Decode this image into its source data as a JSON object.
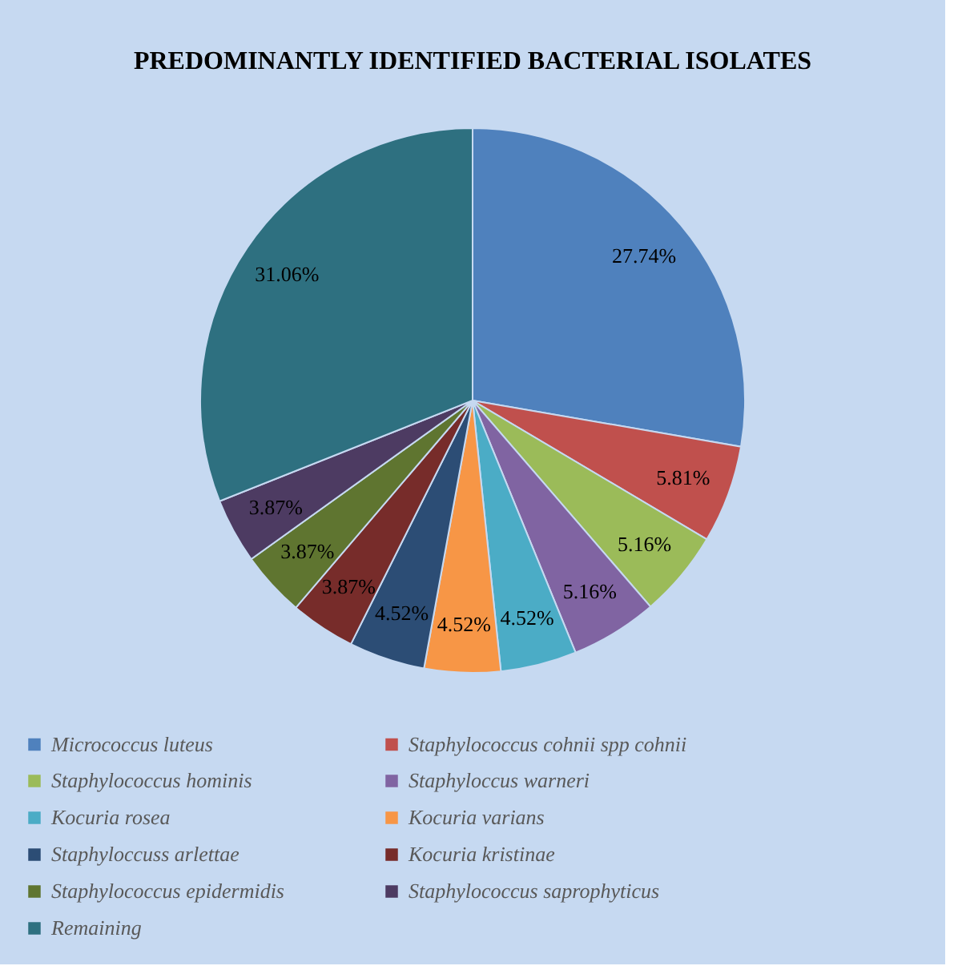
{
  "chart_data": {
    "type": "pie",
    "title": "PREDOMINANTLY IDENTIFIED BACTERIAL ISOLATES",
    "categories": [
      "Micrococcus luteus",
      "Staphylococcus cohnii spp cohnii",
      "Staphylococcus hominis",
      "Staphyloccus warneri",
      "Kocuria rosea",
      "Kocuria varians",
      "Staphyloccuss arlettae",
      "Kocuria kristinae",
      "Staphylococcus epidermidis",
      "Staphylococcus saprophyticus",
      "Remaining"
    ],
    "values": [
      27.74,
      5.81,
      5.16,
      5.16,
      4.52,
      4.52,
      4.52,
      3.87,
      3.87,
      3.87,
      31.06
    ],
    "value_labels": [
      "27.74%",
      "5.81%",
      "5.16%",
      "5.16%",
      "4.52%",
      "4.52%",
      "4.52%",
      "3.87%",
      "3.87%",
      "3.87%",
      "31.06%"
    ],
    "colors": [
      "#4f81bd",
      "#c0504d",
      "#9bbb59",
      "#8064a2",
      "#4bacc6",
      "#f79646",
      "#2c4d75",
      "#772c2a",
      "#5f7530",
      "#4d3b62",
      "#2e7080"
    ],
    "legend": "bottom"
  }
}
